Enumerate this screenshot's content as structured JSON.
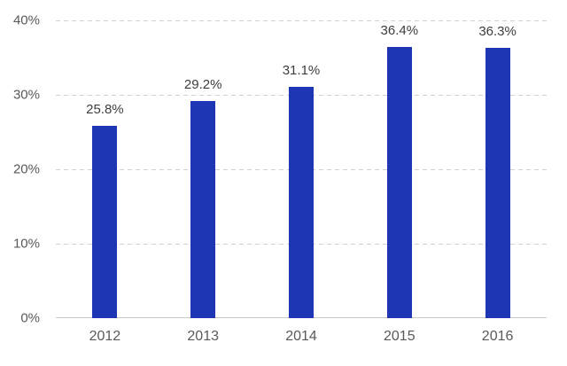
{
  "chart_data": {
    "type": "bar",
    "title": "",
    "xlabel": "",
    "ylabel": "",
    "categories": [
      "2012",
      "2013",
      "2014",
      "2015",
      "2016"
    ],
    "values": [
      25.8,
      29.2,
      31.1,
      36.4,
      36.3
    ],
    "value_labels": [
      "25.8%",
      "29.2%",
      "31.1%",
      "36.4%",
      "36.3%"
    ],
    "ylim": [
      0,
      40
    ],
    "yticks": [
      {
        "value": 0,
        "label": "0%"
      },
      {
        "value": 10,
        "label": "10%"
      },
      {
        "value": 20,
        "label": "20%"
      },
      {
        "value": 30,
        "label": "30%"
      },
      {
        "value": 40,
        "label": "40%"
      }
    ],
    "grid": "horizontal-dashed",
    "legend": "none",
    "bar_color": "#1e35b4",
    "axis_label_color": "#595959",
    "value_label_color": "#3d3d3d",
    "gridline_color": "#cfcfcf",
    "baseline_color": "#c9c9c9",
    "background_color": "#ffffff"
  }
}
